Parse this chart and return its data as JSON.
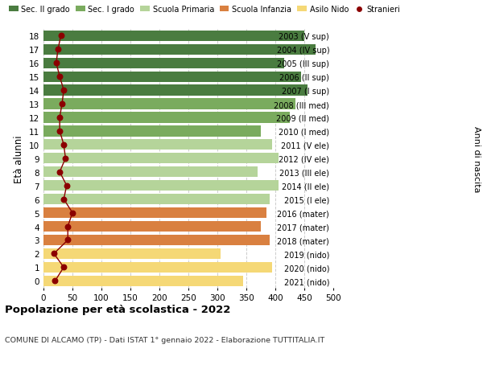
{
  "ages": [
    18,
    17,
    16,
    15,
    14,
    13,
    12,
    11,
    10,
    9,
    8,
    7,
    6,
    5,
    4,
    3,
    2,
    1,
    0
  ],
  "bar_values": [
    450,
    470,
    415,
    445,
    455,
    435,
    425,
    375,
    395,
    405,
    370,
    405,
    390,
    385,
    375,
    390,
    305,
    395,
    345
  ],
  "stranieri": [
    30,
    25,
    22,
    28,
    35,
    32,
    28,
    28,
    35,
    38,
    28,
    40,
    35,
    50,
    42,
    42,
    18,
    35,
    20
  ],
  "bar_colors": [
    "#4a7c40",
    "#4a7c40",
    "#4a7c40",
    "#4a7c40",
    "#4a7c40",
    "#7aab5e",
    "#7aab5e",
    "#7aab5e",
    "#b5d49a",
    "#b5d49a",
    "#b5d49a",
    "#b5d49a",
    "#b5d49a",
    "#d98040",
    "#d98040",
    "#d98040",
    "#f5d876",
    "#f5d876",
    "#f5d876"
  ],
  "right_labels": [
    "2003 (V sup)",
    "2004 (IV sup)",
    "2005 (III sup)",
    "2006 (II sup)",
    "2007 (I sup)",
    "2008 (III med)",
    "2009 (II med)",
    "2010 (I med)",
    "2011 (V ele)",
    "2012 (IV ele)",
    "2013 (III ele)",
    "2014 (II ele)",
    "2015 (I ele)",
    "2016 (mater)",
    "2017 (mater)",
    "2018 (mater)",
    "2019 (nido)",
    "2020 (nido)",
    "2021 (nido)"
  ],
  "legend_labels": [
    "Sec. II grado",
    "Sec. I grado",
    "Scuola Primaria",
    "Scuola Infanzia",
    "Asilo Nido",
    "Stranieri"
  ],
  "legend_colors": [
    "#4a7c40",
    "#7aab5e",
    "#b5d49a",
    "#d98040",
    "#f5d876",
    "#9b1c1c"
  ],
  "ylabel": "Età alunni",
  "right_ylabel": "Anni di nascita",
  "title": "Popolazione per età scolastica - 2022",
  "subtitle": "COMUNE DI ALCAMO (TP) - Dati ISTAT 1° gennaio 2022 - Elaborazione TUTTITALIA.IT",
  "xlim": [
    0,
    500
  ],
  "xticks": [
    0,
    50,
    100,
    150,
    200,
    250,
    300,
    350,
    400,
    450,
    500
  ],
  "background_color": "#ffffff",
  "grid_color": "#cccccc",
  "stranieri_color": "#8b0000",
  "stranieri_line_color": "#8b0000"
}
